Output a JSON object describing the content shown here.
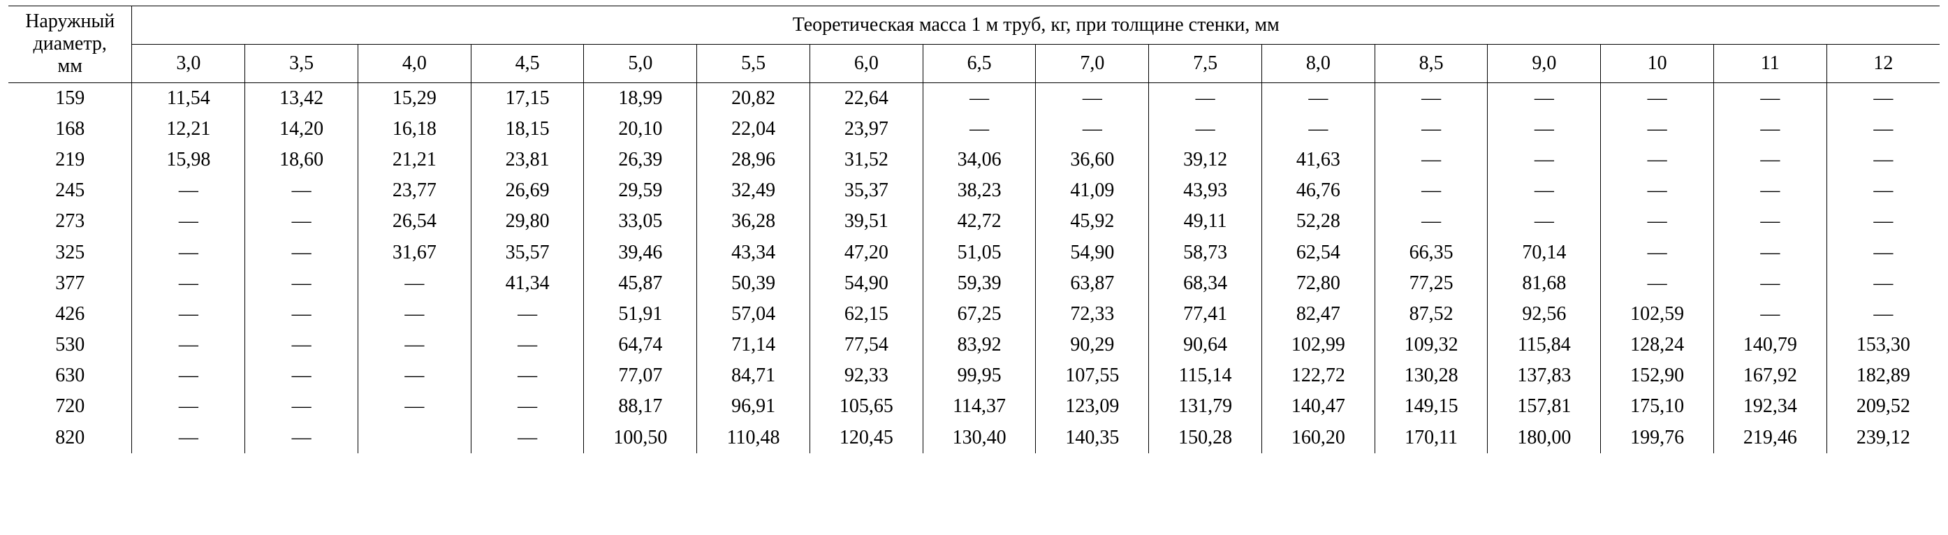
{
  "table": {
    "type": "table",
    "background_color": "#ffffff",
    "text_color": "#000000",
    "border_color": "#000000",
    "font_family": "Times New Roman",
    "header_fontsize_pt": 21,
    "body_fontsize_pt": 21,
    "dash": "—",
    "header": {
      "left_label_line1": "Наружный",
      "left_label_line2": "диаметр,",
      "left_label_line3": "мм",
      "span_label": "Теоретическая масса 1 м труб, кг, при толщине стенки, мм",
      "thickness": [
        "3,0",
        "3,5",
        "4,0",
        "4,5",
        "5,0",
        "5,5",
        "6,0",
        "6,5",
        "7,0",
        "7,5",
        "8,0",
        "8,5",
        "9,0",
        "10",
        "11",
        "12"
      ]
    },
    "diameters": [
      "159",
      "168",
      "219",
      "245",
      "273",
      "325",
      "377",
      "426",
      "530",
      "630",
      "720",
      "820"
    ],
    "rows": [
      [
        "11,54",
        "13,42",
        "15,29",
        "17,15",
        "18,99",
        "20,82",
        "22,64",
        "—",
        "—",
        "—",
        "—",
        "—",
        "—",
        "—",
        "—",
        "—"
      ],
      [
        "12,21",
        "14,20",
        "16,18",
        "18,15",
        "20,10",
        "22,04",
        "23,97",
        "—",
        "—",
        "—",
        "—",
        "—",
        "—",
        "—",
        "—",
        "—"
      ],
      [
        "15,98",
        "18,60",
        "21,21",
        "23,81",
        "26,39",
        "28,96",
        "31,52",
        "34,06",
        "36,60",
        "39,12",
        "41,63",
        "—",
        "—",
        "—",
        "—",
        "—"
      ],
      [
        "—",
        "—",
        "23,77",
        "26,69",
        "29,59",
        "32,49",
        "35,37",
        "38,23",
        "41,09",
        "43,93",
        "46,76",
        "—",
        "—",
        "—",
        "—",
        "—"
      ],
      [
        "—",
        "—",
        "26,54",
        "29,80",
        "33,05",
        "36,28",
        "39,51",
        "42,72",
        "45,92",
        "49,11",
        "52,28",
        "—",
        "—",
        "—",
        "—",
        "—"
      ],
      [
        "—",
        "—",
        "31,67",
        "35,57",
        "39,46",
        "43,34",
        "47,20",
        "51,05",
        "54,90",
        "58,73",
        "62,54",
        "66,35",
        "70,14",
        "—",
        "—",
        "—"
      ],
      [
        "—",
        "—",
        "—",
        "41,34",
        "45,87",
        "50,39",
        "54,90",
        "59,39",
        "63,87",
        "68,34",
        "72,80",
        "77,25",
        "81,68",
        "—",
        "—",
        "—"
      ],
      [
        "—",
        "—",
        "—",
        "—",
        "51,91",
        "57,04",
        "62,15",
        "67,25",
        "72,33",
        "77,41",
        "82,47",
        "87,52",
        "92,56",
        "102,59",
        "—",
        "—"
      ],
      [
        "—",
        "—",
        "—",
        "—",
        "64,74",
        "71,14",
        "77,54",
        "83,92",
        "90,29",
        "90,64",
        "102,99",
        "109,32",
        "115,84",
        "128,24",
        "140,79",
        "153,30"
      ],
      [
        "—",
        "—",
        "—",
        "—",
        "77,07",
        "84,71",
        "92,33",
        "99,95",
        "107,55",
        "115,14",
        "122,72",
        "130,28",
        "137,83",
        "152,90",
        "167,92",
        "182,89"
      ],
      [
        "—",
        "—",
        "—",
        "—",
        "88,17",
        "96,91",
        "105,65",
        "114,37",
        "123,09",
        "131,79",
        "140,47",
        "149,15",
        "157,81",
        "175,10",
        "192,34",
        "209,52"
      ],
      [
        "—",
        "—",
        "",
        "—",
        "100,50",
        "110,48",
        "120,45",
        "130,40",
        "140,35",
        "150,28",
        "160,20",
        "170,11",
        "180,00",
        "199,76",
        "219,46",
        "239,12"
      ]
    ],
    "column_alignment": "center",
    "col_widths_pct": {
      "diameter": 6.4,
      "value": 5.85
    }
  }
}
